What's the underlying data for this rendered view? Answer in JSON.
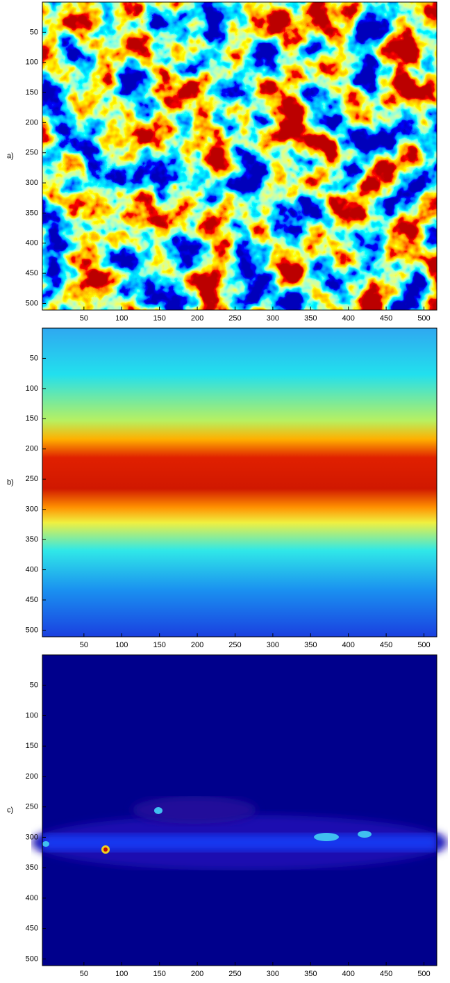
{
  "chart_data": [
    {
      "type": "image",
      "label": "a)",
      "xlim": [
        -5,
        517
      ],
      "ylim": [
        0,
        511
      ],
      "y_reversed": true,
      "xticks": [
        50,
        100,
        150,
        200,
        250,
        300,
        350,
        400,
        450,
        500
      ],
      "yticks": [
        50,
        100,
        150,
        200,
        250,
        300,
        350,
        400,
        450,
        500
      ]
    },
    {
      "type": "image",
      "label": "b)",
      "xlim": [
        -5,
        517
      ],
      "ylim": [
        0,
        511
      ],
      "y_reversed": true,
      "xticks": [
        50,
        100,
        150,
        200,
        250,
        300,
        350,
        400,
        450,
        500
      ],
      "yticks": [
        50,
        100,
        150,
        200,
        250,
        300,
        350,
        400,
        450,
        500
      ]
    },
    {
      "type": "image",
      "label": "c)",
      "xlim": [
        -5,
        517
      ],
      "ylim": [
        0,
        511
      ],
      "y_reversed": true,
      "xticks": [
        50,
        100,
        150,
        200,
        250,
        300,
        350,
        400,
        450,
        500
      ],
      "yticks": [
        50,
        100,
        150,
        200,
        250,
        300,
        350,
        400,
        450,
        500
      ]
    }
  ]
}
